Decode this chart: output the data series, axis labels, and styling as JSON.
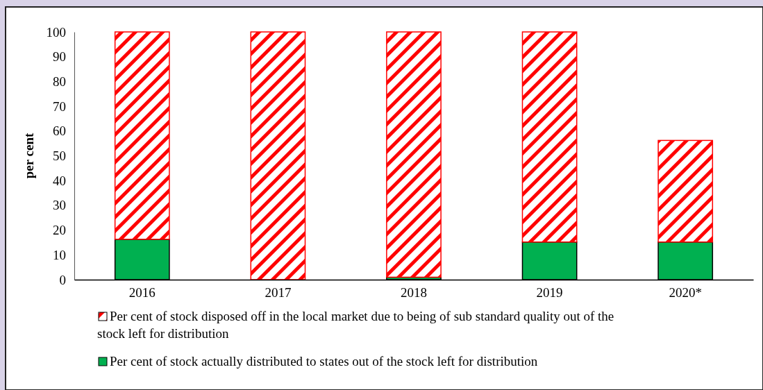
{
  "chart_data": {
    "type": "bar",
    "stacked": true,
    "ylabel": "per cent",
    "categories": [
      "2016",
      "2017",
      "2018",
      "2019",
      "2020*"
    ],
    "series": [
      {
        "name": "Per cent of stock actually distributed to states out of the stock left for distribution",
        "color": "#00b050",
        "values": [
          16.3,
          0,
          1,
          15.2,
          15.2
        ]
      },
      {
        "name": "Per cent of stock disposed off in the local market due to being of sub standard quality out of the stock left for distribution",
        "color": "#ff0000",
        "values": [
          83.7,
          100,
          99,
          84.8,
          41
        ]
      }
    ],
    "ylim": [
      0,
      100
    ],
    "yticks": [
      0,
      10,
      20,
      30,
      40,
      50,
      60,
      70,
      80,
      90,
      100
    ],
    "grid": false,
    "legend": "bottom"
  }
}
